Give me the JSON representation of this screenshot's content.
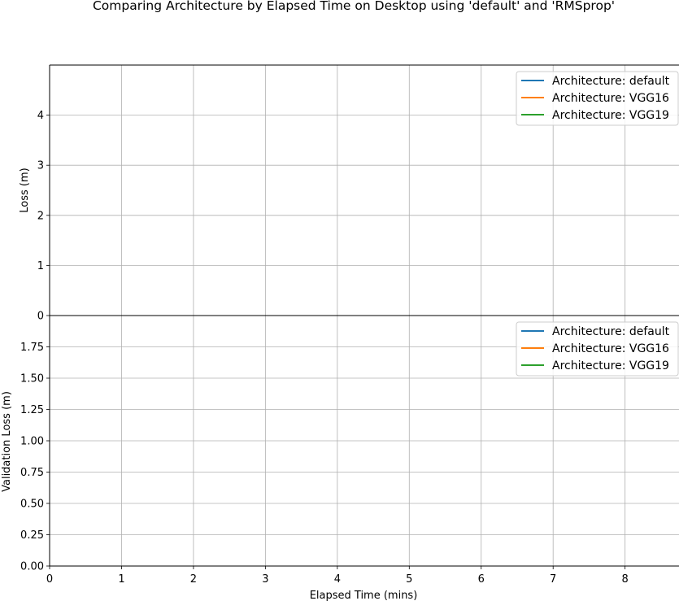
{
  "chart_data": {
    "title": "Comparing Architecture by Elapsed Time on Desktop using 'default' and 'RMSprop'",
    "xlabel": "Elapsed Time (mins)",
    "type": "line",
    "xlim": [
      0,
      8.75
    ],
    "x_ticks": [
      "0",
      "1",
      "2",
      "3",
      "4",
      "5",
      "6",
      "7",
      "8"
    ],
    "grid": true,
    "subplots": [
      {
        "ylabel": "Loss (m)",
        "ylim": [
          0,
          5
        ],
        "y_ticks": [
          "0",
          "1",
          "2",
          "3",
          "4"
        ],
        "legend_position": "top-right",
        "series": [
          {
            "name": "Architecture: default",
            "color": "#1f77b4",
            "x": [],
            "y": []
          },
          {
            "name": "Architecture: VGG16",
            "color": "#ff7f0e",
            "x": [],
            "y": []
          },
          {
            "name": "Architecture: VGG19",
            "color": "#2ca02c",
            "x": [],
            "y": []
          }
        ]
      },
      {
        "ylabel": "Validation Loss (m)",
        "ylim": [
          0,
          2
        ],
        "y_ticks": [
          "0.00",
          "0.25",
          "0.50",
          "0.75",
          "1.00",
          "1.25",
          "1.50",
          "1.75"
        ],
        "legend_position": "top-right",
        "series": [
          {
            "name": "Architecture: default",
            "color": "#1f77b4",
            "x": [],
            "y": []
          },
          {
            "name": "Architecture: VGG16",
            "color": "#ff7f0e",
            "x": [],
            "y": []
          },
          {
            "name": "Architecture: VGG19",
            "color": "#2ca02c",
            "x": [],
            "y": []
          }
        ]
      }
    ]
  }
}
